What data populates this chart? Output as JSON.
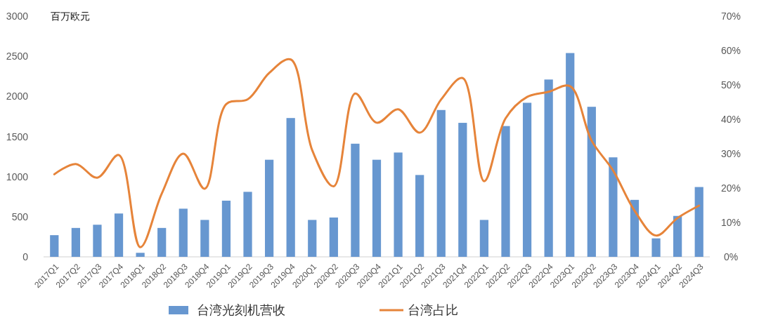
{
  "chart_data": {
    "type": "bar",
    "ylabel": "百万欧元",
    "categories": [
      "2017Q1",
      "2017Q2",
      "2017Q3",
      "2017Q4",
      "2018Q1",
      "2018Q2",
      "2018Q3",
      "2018Q4",
      "2019Q1",
      "2019Q2",
      "2019Q3",
      "2019Q4",
      "2020Q1",
      "2020Q2",
      "2020Q3",
      "2020Q4",
      "2021Q1",
      "2021Q2",
      "2021Q3",
      "2021Q4",
      "2022Q1",
      "2022Q2",
      "2022Q3",
      "2022Q4",
      "2023Q1",
      "2023Q2",
      "2023Q3",
      "2023Q4",
      "2024Q1",
      "2024Q2",
      "2024Q3"
    ],
    "series": [
      {
        "name": "台湾光刻机营收",
        "color": "#6797d0",
        "values": [
          270,
          360,
          400,
          540,
          50,
          360,
          600,
          460,
          700,
          810,
          1210,
          1730,
          460,
          490,
          1410,
          1210,
          1300,
          1020,
          1830,
          1670,
          460,
          1630,
          1920,
          2210,
          2540,
          1870,
          1240,
          710,
          230,
          510,
          870
        ]
      },
      {
        "name": "台湾占比",
        "type": "line",
        "axis": "y2",
        "color": "#e6843a",
        "values": [
          24.0,
          27.0,
          23.0,
          29.6,
          2.8,
          18.4,
          30.0,
          19.8,
          44.4,
          45.8,
          53.5,
          57.4,
          31.0,
          20.5,
          47.5,
          39.0,
          42.9,
          36.1,
          45.8,
          52.0,
          22.0,
          40.3,
          46.5,
          48.0,
          49.6,
          33.8,
          25.1,
          13.4,
          6.2,
          11.3,
          14.9
        ]
      }
    ],
    "ylim": [
      0,
      3000
    ],
    "yticks": [
      0,
      500,
      1000,
      1500,
      2000,
      2500,
      3000
    ],
    "y2lim": [
      0,
      70
    ],
    "y2ticks": [
      {
        "value": 0,
        "label": "0%"
      },
      {
        "value": 10,
        "label": "10%"
      },
      {
        "value": 20,
        "label": "20%"
      },
      {
        "value": 30,
        "label": "30%"
      },
      {
        "value": 40,
        "label": "40%"
      },
      {
        "value": 50,
        "label": "50%"
      },
      {
        "value": 60,
        "label": "60%"
      },
      {
        "value": 70,
        "label": "70%"
      }
    ],
    "grid": false,
    "legend": "bottom",
    "marker": "none",
    "line_style": "solid"
  }
}
